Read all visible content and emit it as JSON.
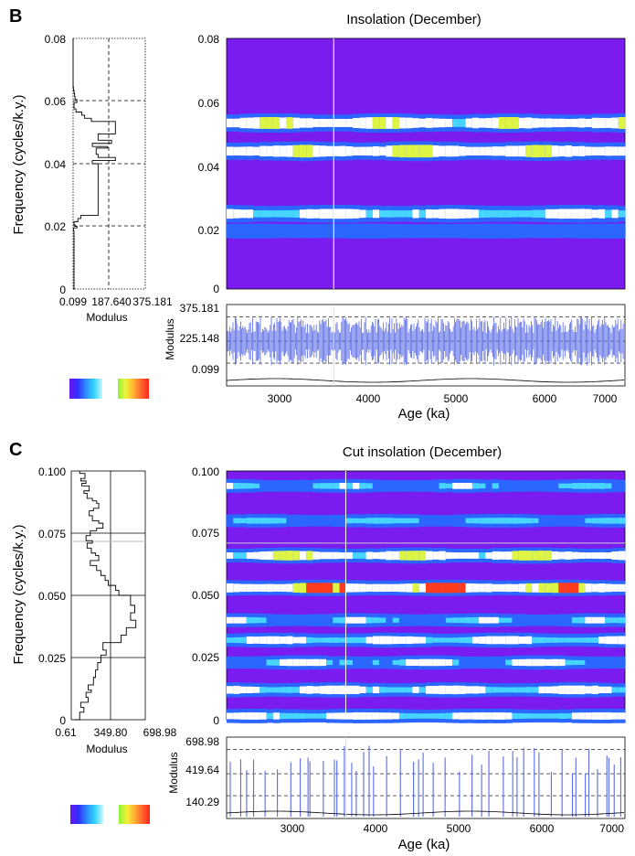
{
  "colors": {
    "background": "#7a1cf0",
    "band_blue": "#2a66ff",
    "band_white": "#ffffff",
    "band_cyan": "#46d6ff",
    "hot_yellow": "#dff545",
    "hot_red": "#ff3c1e",
    "trace_blue": "#5a6be6",
    "cursor": "#ffffff"
  },
  "colorbar_gradients": [
    [
      "#6a16ef",
      "#3030ff",
      "#2f8bff",
      "#31d5ff",
      "#ccf7ff"
    ],
    [
      "#8cf23d",
      "#eef43a",
      "#ffb332",
      "#ff6630",
      "#ff2418"
    ]
  ],
  "panels": [
    {
      "letter": "B",
      "title": "Insolation (December)",
      "freq_axis_label": "Frequency (cycles/k.y.)",
      "age_axis_label": "Age (ka)",
      "modulus_axis_label": "Modulus",
      "spectrum_xlabel": "Modulus",
      "freq_ticks": [
        "0",
        "0.02",
        "0.04",
        "0.06",
        "0.08"
      ],
      "spectrum_x_ticks": [
        "0.099",
        "187.640",
        "375.181"
      ],
      "modulus_ticks": [
        "0.099",
        "225.148",
        "375.181"
      ],
      "age_ticks": [
        "3000",
        "4000",
        "5000",
        "6000",
        "7000"
      ]
    },
    {
      "letter": "C",
      "title": "Cut insolation (December)",
      "freq_axis_label": "Frequency (cycles/k.y.)",
      "age_axis_label": "Age (ka)",
      "modulus_axis_label": "Modulus",
      "spectrum_xlabel": "Modulus",
      "freq_ticks": [
        "0",
        "0.025",
        "0.050",
        "0.075",
        "0.100"
      ],
      "spectrum_x_ticks": [
        "0.61",
        "349.80",
        "698.98"
      ],
      "modulus_ticks": [
        "140.29",
        "419.64",
        "698.98"
      ],
      "age_ticks": [
        "3000",
        "4000",
        "5000",
        "6000",
        "7000"
      ]
    }
  ],
  "chart_data": [
    {
      "type": "line",
      "panel": "B",
      "title": "",
      "xlabel": "Modulus",
      "ylabel": "Frequency (cycles/k.y.)",
      "xlim": [
        0.099,
        375.181
      ],
      "ylim": [
        0,
        0.08
      ],
      "series": [
        {
          "x": [
            0,
            5,
            2,
            20,
            10,
            5,
            25,
            40,
            130,
            100,
            220,
            130,
            120,
            180,
            100,
            200,
            130,
            220,
            95,
            60,
            45,
            15,
            5,
            20,
            10,
            8,
            5,
            2,
            0
          ],
          "y": [
            0,
            0.0185,
            0.0195,
            0.02,
            0.0205,
            0.0215,
            0.0225,
            0.0235,
            0.04,
            0.041,
            0.042,
            0.043,
            0.045,
            0.0455,
            0.0465,
            0.0475,
            0.0495,
            0.0535,
            0.0545,
            0.0555,
            0.0565,
            0.0575,
            0.0595,
            0.0605,
            0.0615,
            0.0625,
            0.0635,
            0.0645,
            0.08
          ]
        }
      ]
    },
    {
      "type": "heatmap",
      "panel": "B",
      "title": "Insolation (December)",
      "xlabel": "Age (ka)",
      "ylabel": "Frequency (cycles/k.y.)",
      "xlim": [
        2050,
        8000
      ],
      "ylim": [
        0,
        0.08
      ],
      "bands": [
        {
          "freq": 0.0185,
          "level": 0.35,
          "variation": 0.15
        },
        {
          "freq": 0.024,
          "level": 0.7,
          "variation": 0.25
        },
        {
          "freq": 0.044,
          "level": 0.95,
          "variation": 0.3
        },
        {
          "freq": 0.053,
          "level": 0.88,
          "variation": 0.3
        }
      ],
      "cursor_age": 3650
    },
    {
      "type": "line",
      "panel": "B",
      "title": "",
      "xlabel": "Age (ka)",
      "ylabel": "Modulus",
      "xlim": [
        2050,
        8000
      ],
      "ylim": [
        0.099,
        375.181
      ],
      "series": [
        {
          "name": "",
          "amplitude_center": 225.148,
          "amplitude_range": [
            90,
            330
          ]
        }
      ]
    },
    {
      "type": "line",
      "panel": "C",
      "title": "",
      "xlabel": "Modulus",
      "ylabel": "Frequency (cycles/k.y.)",
      "xlim": [
        0.61,
        698.98
      ],
      "ylim": [
        0,
        0.1
      ],
      "series": [
        {
          "x": [
            30,
            80,
            120,
            90,
            160,
            140,
            190,
            160,
            210,
            230,
            250,
            280,
            330,
            300,
            470,
            520,
            610,
            560,
            600,
            560,
            450,
            420,
            350,
            320,
            280,
            240,
            180,
            260,
            230,
            190,
            150,
            200,
            140,
            180,
            240,
            300,
            260,
            200,
            170,
            210,
            260,
            240,
            200,
            150,
            120,
            170,
            100,
            140,
            90,
            130,
            80
          ],
          "y": [
            0.0,
            0.003,
            0.005,
            0.007,
            0.009,
            0.011,
            0.012,
            0.014,
            0.017,
            0.02,
            0.023,
            0.026,
            0.028,
            0.031,
            0.034,
            0.037,
            0.04,
            0.043,
            0.046,
            0.05,
            0.052,
            0.054,
            0.056,
            0.058,
            0.06,
            0.062,
            0.064,
            0.066,
            0.067,
            0.069,
            0.071,
            0.072,
            0.074,
            0.076,
            0.077,
            0.079,
            0.08,
            0.082,
            0.084,
            0.085,
            0.087,
            0.088,
            0.089,
            0.091,
            0.092,
            0.094,
            0.095,
            0.096,
            0.097,
            0.099,
            0.1
          ]
        }
      ]
    },
    {
      "type": "heatmap",
      "panel": "C",
      "title": "Cut insolation (December)",
      "xlabel": "Age (ka)",
      "ylabel": "Frequency (cycles/k.y.)",
      "xlim": [
        2050,
        8000
      ],
      "ylim": [
        0,
        0.1
      ],
      "bands": [
        {
          "freq": 0.0015,
          "level": 0.65,
          "variation": 0.25
        },
        {
          "freq": 0.012,
          "level": 0.8,
          "variation": 0.35
        },
        {
          "freq": 0.023,
          "level": 0.55,
          "variation": 0.35
        },
        {
          "freq": 0.032,
          "level": 0.72,
          "variation": 0.35
        },
        {
          "freq": 0.04,
          "level": 0.45,
          "variation": 0.35
        },
        {
          "freq": 0.053,
          "level": 1.0,
          "variation": 0.25
        },
        {
          "freq": 0.066,
          "level": 0.95,
          "variation": 0.35
        },
        {
          "freq": 0.08,
          "level": 0.4,
          "variation": 0.35
        },
        {
          "freq": 0.094,
          "level": 0.42,
          "variation": 0.35
        }
      ],
      "cursor_age": 3830,
      "cursor_freq": 0.071
    },
    {
      "type": "line",
      "panel": "C",
      "title": "",
      "xlabel": "Age (ka)",
      "ylabel": "Modulus",
      "xlim": [
        2050,
        8000
      ],
      "ylim": [
        0.61,
        698.98
      ],
      "series": [
        {
          "name": "",
          "pattern": "bursts",
          "max": 698.98
        }
      ]
    }
  ]
}
